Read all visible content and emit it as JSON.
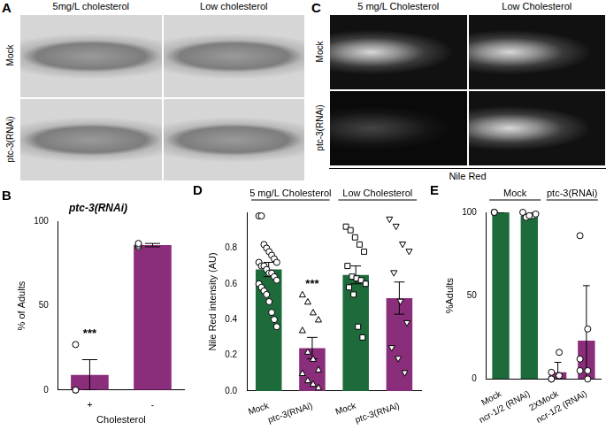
{
  "micrographs": [
    {
      "panel": "A",
      "columns": [
        "5mg/L cholesterol",
        "Low cholesterol"
      ],
      "rows": [
        "Mock",
        "ptc-3(RNAi)"
      ]
    },
    {
      "panel": "C",
      "columns": [
        "5 mg/L Cholesterol",
        "Low Cholesterol"
      ],
      "rows": [
        "Mock",
        "ptc-3(RNAi)"
      ],
      "caption": "Nile Red"
    }
  ],
  "chart_data": [
    {
      "panel": "B",
      "type": "bar",
      "title": "ptc-3(RNAi)",
      "categories": [
        "+",
        "-"
      ],
      "values": [
        9,
        86
      ],
      "errors": [
        9,
        1
      ],
      "colors": [
        "#8a2d7a",
        "#8a2d7a"
      ],
      "points": [
        {
          "marker": "circle",
          "values": [
            27,
            0,
            0
          ]
        },
        {
          "marker": "circle",
          "values": [
            85,
            86,
            87
          ]
        }
      ],
      "annotations": [
        "***",
        null
      ],
      "x_label": "Cholesterol",
      "y_label": "% of Adults",
      "ylim": [
        0,
        100
      ],
      "yticks": [
        0,
        50,
        100
      ],
      "grid": false
    },
    {
      "panel": "D",
      "type": "bar",
      "group_labels": [
        "5 mg/L Cholesterol",
        "Low Cholesterol"
      ],
      "categories": [
        "Mock",
        "ptc-3(RNAi)",
        "Mock",
        "ptc-3(RNAi)"
      ],
      "values": [
        0.68,
        0.24,
        0.65,
        0.52
      ],
      "errors": [
        0.04,
        0.06,
        0.05,
        0.09
      ],
      "colors": [
        "#1d6b3b",
        "#8a2d7a",
        "#1d6b3b",
        "#8a2d7a"
      ],
      "points": [
        {
          "marker": "circle",
          "values": [
            0.98,
            0.98,
            0.82,
            0.8,
            0.78,
            0.76,
            0.74,
            0.72,
            0.72,
            0.7,
            0.7,
            0.68,
            0.66,
            0.66,
            0.64,
            0.62,
            0.6,
            0.58,
            0.56,
            0.54,
            0.5,
            0.44,
            0.4,
            0.36
          ]
        },
        {
          "marker": "triangle",
          "values": [
            0.54,
            0.5,
            0.44,
            0.4,
            0.34,
            0.22,
            0.18,
            0.12,
            0.1,
            0.06,
            0.04,
            0.02
          ]
        },
        {
          "marker": "rect",
          "values": [
            0.92,
            0.9,
            0.86,
            0.82,
            0.78,
            0.7,
            0.64,
            0.63,
            0.62,
            0.6,
            0.58,
            0.54,
            0.36,
            0.3
          ]
        },
        {
          "marker": "triangle-down",
          "values": [
            0.96,
            0.92,
            0.82,
            0.78,
            0.66,
            0.5,
            0.38,
            0.24,
            0.18,
            0.1
          ]
        }
      ],
      "annotations": [
        null,
        "***",
        null,
        null
      ],
      "y_label": "Nile Red intensity (AU)",
      "ylim": [
        0,
        1.0
      ],
      "yticks": [
        {
          "value": 0,
          "label": "0.0"
        },
        0.2,
        0.4,
        0.6,
        0.8
      ],
      "grid": false
    },
    {
      "panel": "E",
      "type": "bar",
      "group_labels": [
        "Mock",
        "ptc-3(RNAi)"
      ],
      "categories": [
        "Mock",
        "ncr-1/2 (RNAi)",
        "2XMock",
        "ncr-1/2 (RNAi)"
      ],
      "values": [
        100,
        98,
        4,
        23
      ],
      "errors": [
        0,
        1,
        6,
        33
      ],
      "colors": [
        "#1d6b3b",
        "#1d6b3b",
        "#8a2d7a",
        "#8a2d7a"
      ],
      "points": [
        {
          "marker": "circle",
          "values": [
            100,
            100,
            100
          ]
        },
        {
          "marker": "circle",
          "values": [
            100,
            98,
            97,
            99,
            98
          ]
        },
        {
          "marker": "circle",
          "values": [
            0,
            2,
            4,
            16,
            0,
            2
          ]
        },
        {
          "marker": "circle",
          "values": [
            86,
            30,
            12,
            5,
            5,
            0
          ]
        }
      ],
      "y_label": "%Adults",
      "ylim": [
        0,
        100
      ],
      "yticks": [
        0,
        50,
        100
      ],
      "grid": false
    }
  ]
}
